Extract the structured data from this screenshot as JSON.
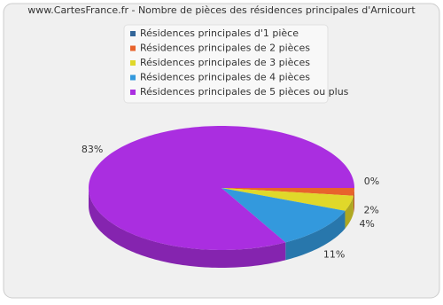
{
  "chart_data": {
    "type": "pie",
    "title": "www.CartesFrance.fr - Nombre de pièces des résidences principales d'Arnicourt",
    "categories": [
      "Résidences principales d'1 pièce",
      "Résidences principales de 2 pièces",
      "Résidences principales de 3 pièces",
      "Résidences principales de 4 pièces",
      "Résidences principales de 5 pièces ou plus"
    ],
    "values": [
      0,
      2,
      4,
      11,
      83
    ],
    "value_labels": [
      "0%",
      "2%",
      "4%",
      "11%",
      "83%"
    ],
    "colors": [
      "#336699",
      "#e8632c",
      "#e0d82a",
      "#3399dd",
      "#aa2ee0"
    ]
  }
}
